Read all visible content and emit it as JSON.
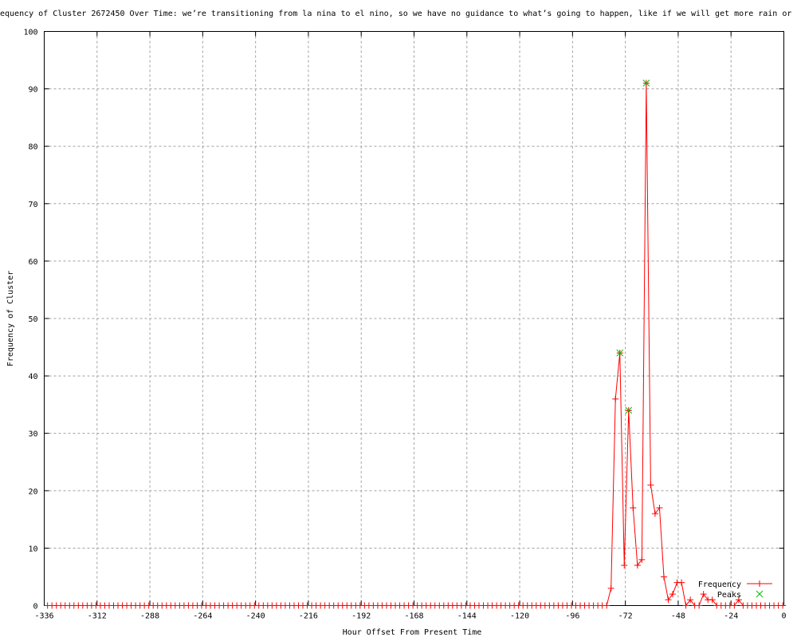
{
  "chart_data": {
    "type": "line",
    "title": "equency of Cluster 2672450 Over Time: we’re transitioning from la nina to el nino, so we have no guidance to what’s going to happen, like if we will get more rain or l",
    "xlabel": "Hour Offset From Present Time",
    "ylabel": "Frequency of Cluster",
    "xlim": [
      -336,
      0
    ],
    "ylim": [
      0,
      100
    ],
    "xticks": [
      -336,
      -312,
      -288,
      -264,
      -240,
      -216,
      -192,
      -168,
      -144,
      -120,
      -96,
      -72,
      -48,
      -24,
      0
    ],
    "yticks": [
      0,
      10,
      20,
      30,
      40,
      50,
      60,
      70,
      80,
      90,
      100
    ],
    "grid": true,
    "legend_position": "bottom-right",
    "series": [
      {
        "name": "Frequency",
        "color": "#ff0000",
        "marker": "plus",
        "x_start": -334.5,
        "x_step": 2,
        "nonzero": {
          "-78.5": 3,
          "-76.5": 36,
          "-74.5": 44,
          "-72.5": 7,
          "-70.5": 34,
          "-68.5": 17,
          "-66.5": 7,
          "-64.5": 8,
          "-62.5": 91,
          "-60.5": 21,
          "-58.5": 16,
          "-56.5": 17,
          "-54.5": 5,
          "-52.5": 1,
          "-50.5": 2,
          "-48.5": 4,
          "-46.5": 4,
          "-42.5": 1,
          "-36.5": 2,
          "-34.5": 1,
          "-32.5": 1,
          "-20.5": 1
        }
      },
      {
        "name": "Peaks",
        "color": "#00c000",
        "marker": "cross",
        "points": [
          [
            -74.5,
            44
          ],
          [
            -70.5,
            34
          ],
          [
            -62.5,
            91
          ]
        ]
      }
    ]
  }
}
